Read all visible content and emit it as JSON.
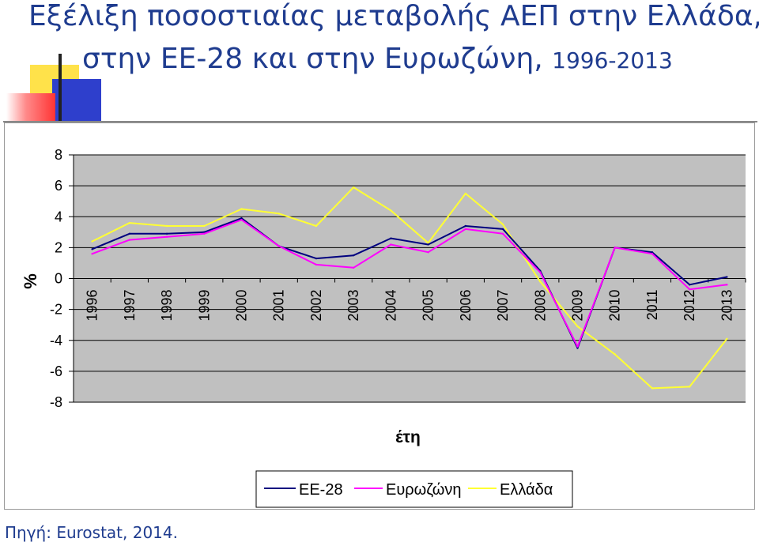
{
  "title": {
    "line1": "Εξέλιξη ποσοστιαίας μεταβολής ΑΕΠ στην Ελλάδα,",
    "line2_main": "στην ΕΕ-28 και στην Ευρωζώνη, ",
    "line2_years": "1996-2013"
  },
  "source": "Πηγή: Eurostat, 2014.",
  "colors": {
    "plot_bg": "#c0c0c0",
    "ee28": "#00007f",
    "eurozone": "#ff00ff",
    "greece": "#ffff33",
    "title": "#1f3c8f"
  },
  "chart_data": {
    "type": "line",
    "title": "",
    "xlabel": "έτη",
    "ylabel": "%",
    "ylim": [
      -8,
      8
    ],
    "y_ticks": [
      "8",
      "6",
      "4",
      "2",
      "0",
      "-2",
      "-4",
      "-6",
      "-8"
    ],
    "grid": true,
    "legend_position": "bottom-right",
    "categories": [
      "1996",
      "1997",
      "1998",
      "1999",
      "2000",
      "2001",
      "2002",
      "2003",
      "2004",
      "2005",
      "2006",
      "2007",
      "2008",
      "2009",
      "2010",
      "2011",
      "2012",
      "2013"
    ],
    "series": [
      {
        "name": "ΕΕ-28",
        "color": "#00007f",
        "values": [
          1.9,
          2.9,
          2.9,
          3.0,
          3.9,
          2.1,
          1.3,
          1.5,
          2.6,
          2.2,
          3.4,
          3.2,
          0.5,
          -4.5,
          2.0,
          1.7,
          -0.4,
          0.1
        ]
      },
      {
        "name": "Ευρωζώνη",
        "color": "#ff00ff",
        "values": [
          1.6,
          2.5,
          2.7,
          2.9,
          3.8,
          2.1,
          0.9,
          0.7,
          2.2,
          1.7,
          3.2,
          2.9,
          0.4,
          -4.4,
          2.0,
          1.6,
          -0.7,
          -0.4
        ]
      },
      {
        "name": "Ελλάδα",
        "color": "#ffff33",
        "values": [
          2.4,
          3.6,
          3.4,
          3.4,
          4.5,
          4.2,
          3.4,
          5.9,
          4.4,
          2.3,
          5.5,
          3.5,
          -0.2,
          -3.1,
          -4.9,
          -7.1,
          -7.0,
          -3.9
        ]
      }
    ]
  }
}
